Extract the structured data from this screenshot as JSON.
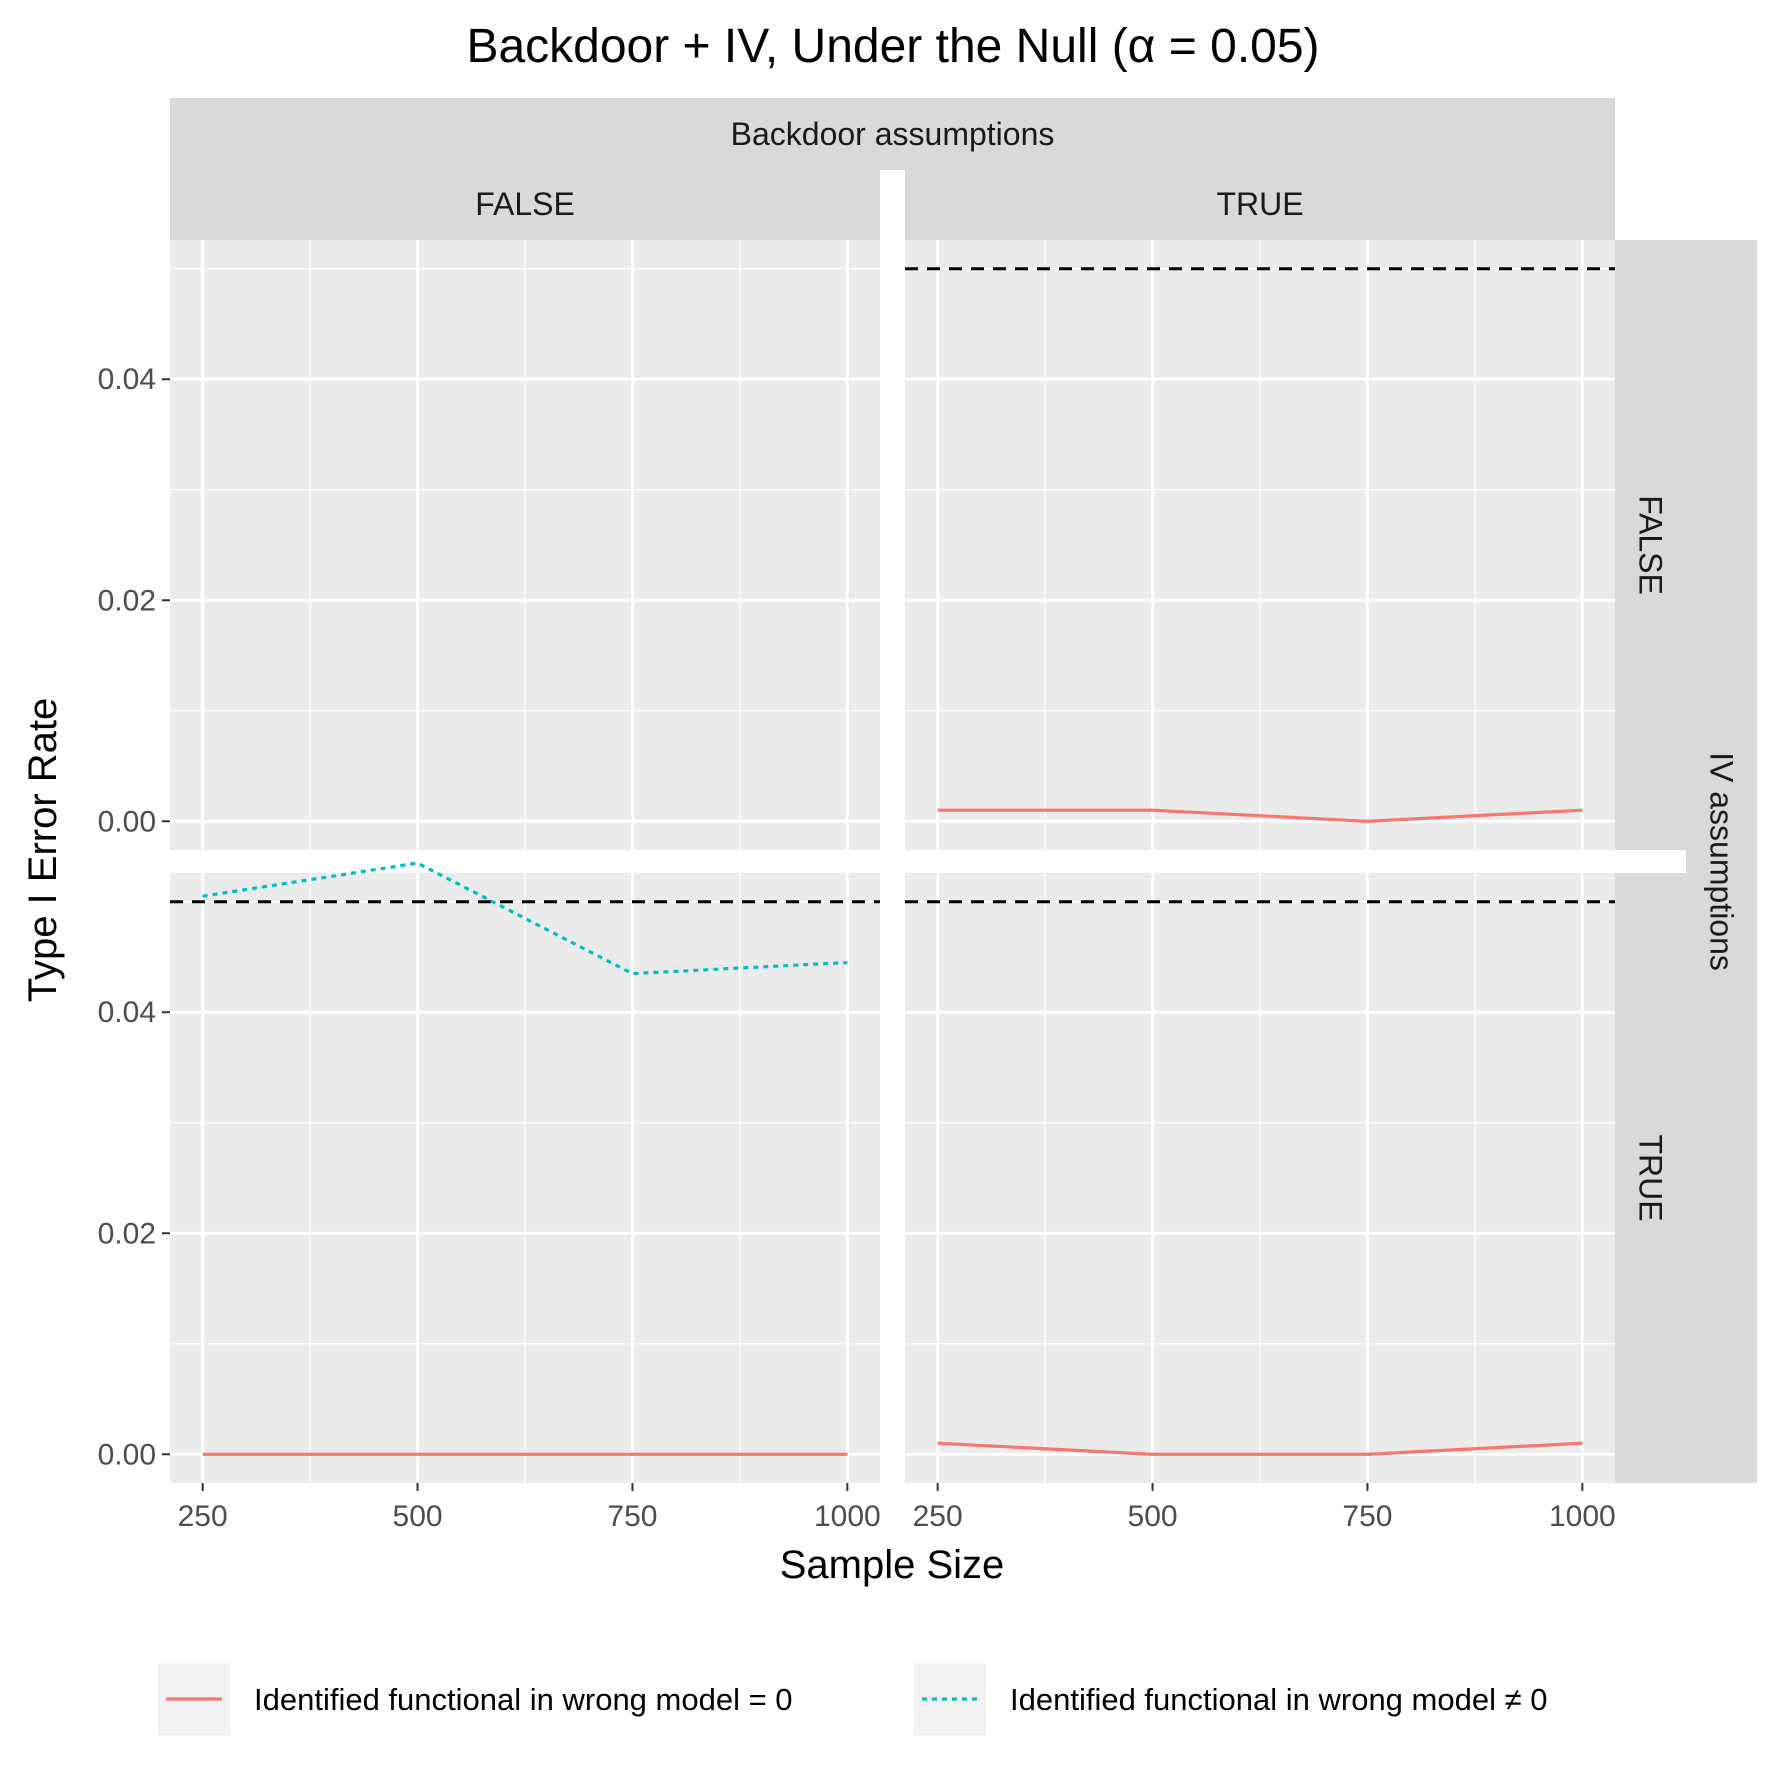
{
  "chart_data": {
    "type": "line",
    "title": "Backdoor + IV, Under the Null (α = 0.05)",
    "xlabel": "Sample Size",
    "ylabel": "Type I Error Rate",
    "facet_col_title": "Backdoor assumptions",
    "facet_row_title": "IV assumptions",
    "facet_cols": [
      "FALSE",
      "TRUE"
    ],
    "facet_rows": [
      "FALSE",
      "TRUE"
    ],
    "x_ticks": [
      250,
      500,
      750,
      1000
    ],
    "y_ticks": [
      0.0,
      0.02,
      0.04
    ],
    "y_tick_labels": [
      "0.00",
      "0.02",
      "0.04"
    ],
    "x_tick_labels": [
      "250",
      "500",
      "750",
      "1000"
    ],
    "xlim": [
      212,
      1038
    ],
    "ylim": [
      -0.0026,
      0.0526
    ],
    "reference_line": 0.05,
    "series": [
      {
        "name": "Identified functional in wrong model = 0",
        "color": "#F8766D",
        "dash": "solid"
      },
      {
        "name": "Identified functional in wrong model ≠ 0",
        "color": "#00BFC4",
        "dash": "dotted"
      }
    ],
    "panels": [
      {
        "row": "FALSE",
        "col": "FALSE",
        "show_reference": false,
        "lines": []
      },
      {
        "row": "FALSE",
        "col": "TRUE",
        "show_reference": true,
        "lines": [
          {
            "series": 0,
            "x": [
              250,
              500,
              750,
              1000
            ],
            "y": [
              0.001,
              0.001,
              0.0,
              0.001
            ]
          }
        ]
      },
      {
        "row": "TRUE",
        "col": "FALSE",
        "show_reference": true,
        "lines": [
          {
            "series": 1,
            "x": [
              250,
              500,
              750,
              1000
            ],
            "y": [
              0.0505,
              0.0535,
              0.0435,
              0.0445
            ]
          },
          {
            "series": 0,
            "x": [
              250,
              500,
              750,
              1000
            ],
            "y": [
              0.0,
              0.0,
              0.0,
              0.0
            ]
          }
        ]
      },
      {
        "row": "TRUE",
        "col": "TRUE",
        "show_reference": true,
        "lines": [
          {
            "series": 0,
            "x": [
              250,
              500,
              750,
              1000
            ],
            "y": [
              0.001,
              0.0,
              0.0,
              0.001
            ]
          }
        ]
      }
    ],
    "grid": true,
    "legend_position": "bottom"
  }
}
